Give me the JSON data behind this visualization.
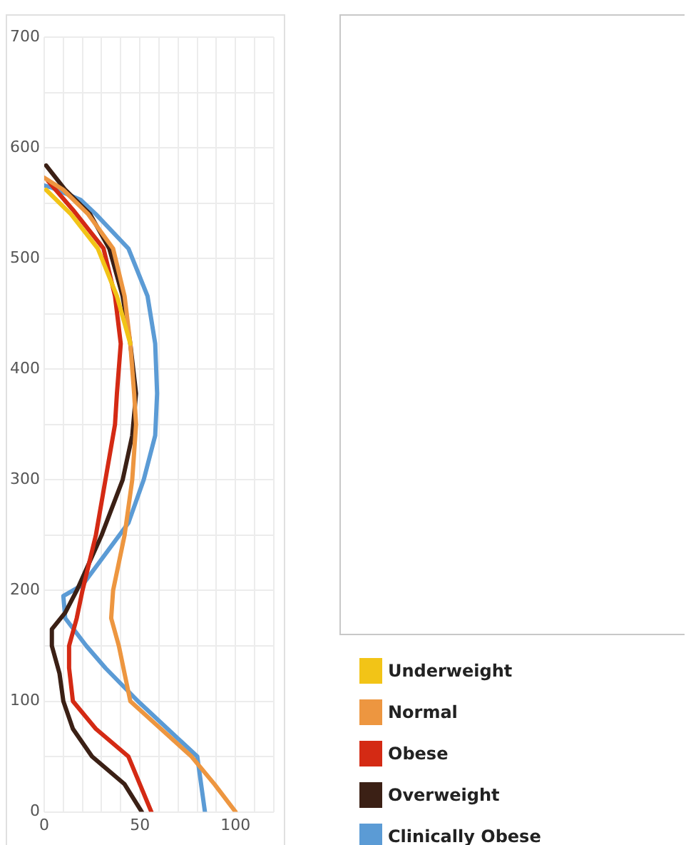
{
  "chart_data": {
    "type": "line",
    "xlim": [
      0,
      120
    ],
    "ylim": [
      0,
      700
    ],
    "xticks": [
      0,
      {
        "value": 10,
        "label": null
      },
      {
        "value": 20,
        "label": null
      },
      {
        "value": 30,
        "label": null
      },
      {
        "value": 40,
        "label": null
      },
      50,
      {
        "value": 60,
        "label": null
      },
      {
        "value": 70,
        "label": null
      },
      {
        "value": 80,
        "label": null
      },
      {
        "value": 90,
        "label": null
      },
      100,
      {
        "value": 110,
        "label": null
      },
      {
        "value": 120,
        "label": null
      }
    ],
    "yticks": [
      0,
      {
        "value": 50,
        "label": null
      },
      100,
      {
        "value": 150,
        "label": null
      },
      200,
      {
        "value": 250,
        "label": null
      },
      300,
      {
        "value": 350,
        "label": null
      },
      400,
      {
        "value": 450,
        "label": null
      },
      500,
      {
        "value": 550,
        "label": null
      },
      600,
      {
        "value": 650,
        "label": null
      },
      700
    ],
    "grid": true,
    "legend": "bottom right",
    "marker": "none",
    "line_style": "solid",
    "series": [
      {
        "name": "Underweight",
        "color": "#f2c417",
        "x": [
          45,
          38,
          28,
          14,
          1
        ],
        "values": [
          423,
          466,
          509,
          540,
          562
        ]
      },
      {
        "name": "Normal",
        "color": "#ed9640",
        "x": [
          100,
          89,
          77,
          61,
          45,
          42,
          39,
          35,
          36,
          42,
          46,
          48,
          47,
          45,
          42,
          36,
          23,
          10,
          0
        ],
        "values": [
          0,
          25,
          50,
          75,
          100,
          125,
          150,
          175,
          200,
          250,
          300,
          350,
          378,
          423,
          466,
          509,
          540,
          562,
          573
        ]
      },
      {
        "name": "Obese",
        "color": "#d42a14",
        "x": [
          56,
          44,
          27,
          15,
          13,
          13,
          17,
          20,
          27,
          32,
          37,
          38,
          40,
          37,
          31,
          15,
          2
        ],
        "values": [
          0,
          50,
          75,
          100,
          130,
          150,
          175,
          200,
          250,
          300,
          350,
          378,
          423,
          466,
          509,
          544,
          570
        ]
      },
      {
        "name": "Overweight",
        "color": "#3b2015",
        "x": [
          51,
          42,
          25,
          15,
          10,
          8,
          4,
          4,
          11,
          17,
          30,
          41,
          46,
          48,
          45,
          41,
          34,
          24,
          11,
          1
        ],
        "values": [
          0,
          25,
          50,
          75,
          100,
          125,
          150,
          165,
          180,
          200,
          250,
          300,
          340,
          378,
          423,
          466,
          509,
          540,
          562,
          584
        ]
      },
      {
        "name": "Clinically Obese",
        "color": "#5b9bd5",
        "x": [
          84,
          80,
          49,
          32,
          22,
          11,
          10,
          20,
          44,
          52,
          58,
          59,
          58,
          54,
          44,
          27,
          19,
          4,
          0
        ],
        "values": [
          0,
          50,
          100,
          130,
          150,
          175,
          195,
          205,
          261,
          300,
          340,
          378,
          423,
          466,
          509,
          540,
          553,
          564,
          566
        ]
      }
    ]
  }
}
